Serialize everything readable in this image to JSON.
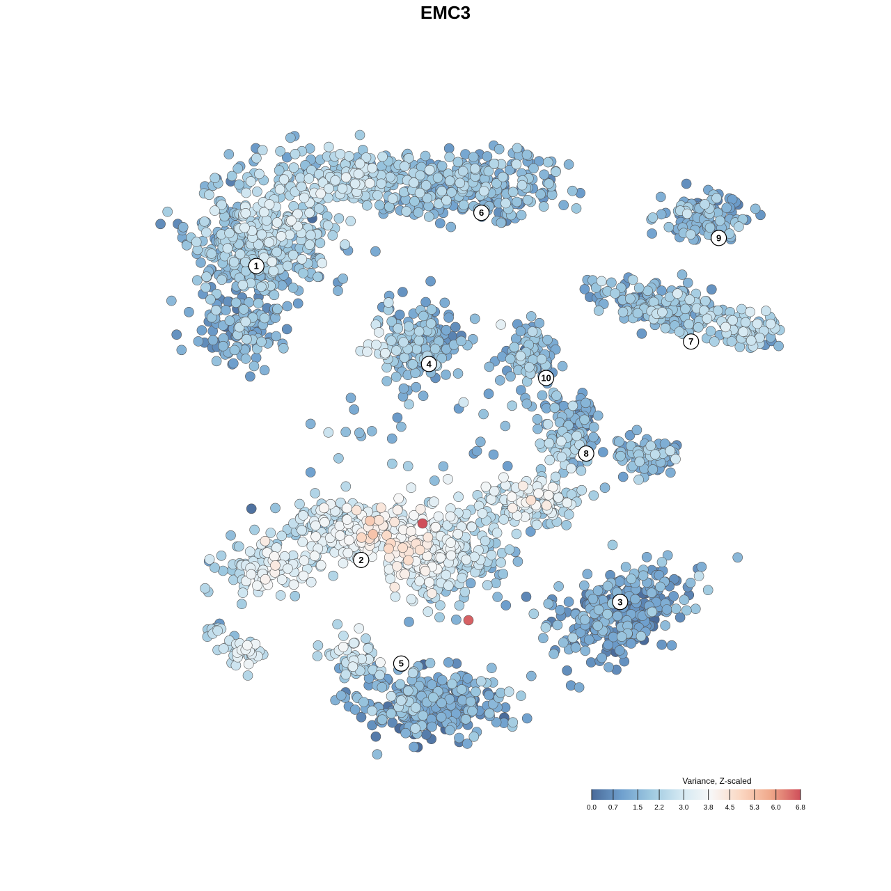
{
  "title": "EMC3",
  "chart_data": {
    "type": "scatter",
    "title": "EMC3",
    "xlabel": "",
    "ylabel": "",
    "grid": false,
    "legend": {
      "title": "Variance, Z-scaled",
      "placement": "bottom-right",
      "ticks": [
        0.0,
        0.7,
        1.5,
        2.2,
        3.0,
        3.8,
        4.5,
        5.3,
        6.0,
        6.8
      ],
      "tick_labels": [
        "0.0",
        "0.7",
        "1.5",
        "2.2",
        "3.0",
        "3.8",
        "4.5",
        "5.3",
        "6.0",
        "6.8"
      ],
      "range": [
        0.0,
        6.8
      ]
    },
    "colormap": [
      "#4a6b9a",
      "#6fa0ce",
      "#9ec9e0",
      "#d3e8f2",
      "#f7f7f7",
      "#fbd7c2",
      "#f0a88a",
      "#cf4f5a"
    ],
    "clusters": [
      {
        "label": "1",
        "center": [
          -6.2,
          6.6
        ],
        "typical_value": 1.6
      },
      {
        "label": "2",
        "center": [
          -2.8,
          -3.9
        ],
        "typical_value": 3.4
      },
      {
        "label": "3",
        "center": [
          5.6,
          -5.4
        ],
        "typical_value": 1.0
      },
      {
        "label": "4",
        "center": [
          -0.6,
          3.1
        ],
        "typical_value": 2.0
      },
      {
        "label": "5",
        "center": [
          -1.5,
          -7.6
        ],
        "typical_value": 1.0
      },
      {
        "label": "6",
        "center": [
          1.1,
          8.5
        ],
        "typical_value": 1.9
      },
      {
        "label": "7",
        "center": [
          7.9,
          3.9
        ],
        "typical_value": 2.1
      },
      {
        "label": "8",
        "center": [
          4.5,
          -0.1
        ],
        "typical_value": 1.1
      },
      {
        "label": "9",
        "center": [
          8.8,
          7.6
        ],
        "typical_value": 1.5
      },
      {
        "label": "10",
        "center": [
          3.2,
          2.6
        ],
        "typical_value": 1.4
      }
    ],
    "xlim": [
      -10,
      11
    ],
    "ylim": [
      -11,
      11.5
    ]
  }
}
